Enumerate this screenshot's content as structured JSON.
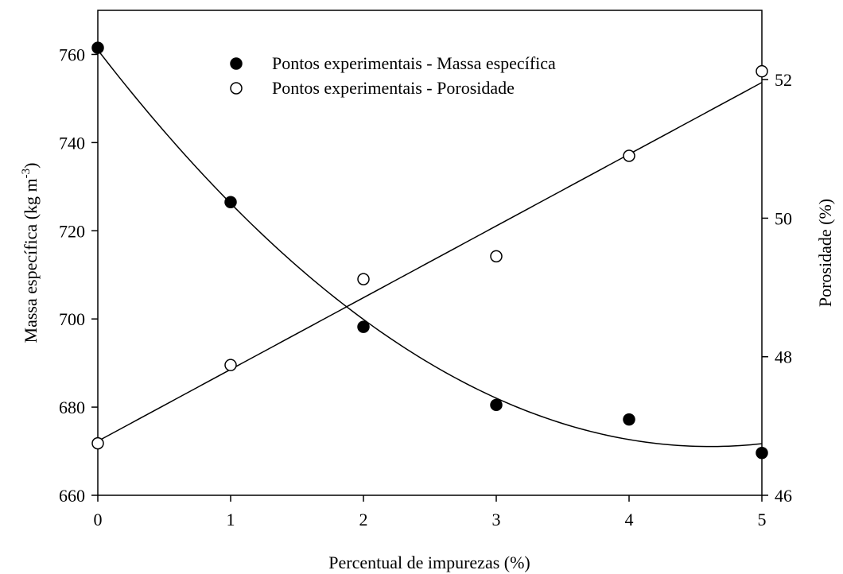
{
  "chart_data": {
    "type": "scatter",
    "x": [
      0,
      1,
      2,
      3,
      4,
      5
    ],
    "xlabel": "Percentual de impurezas (%)",
    "ylabel_left": "Massa específica (kg m",
    "ylabel_left_sup": "-3",
    "ylabel_left_close": ")",
    "ylabel_right": "Porosidade (%)",
    "xlim": [
      0,
      5
    ],
    "ylim_left": [
      660,
      770
    ],
    "ylim_right": [
      46,
      53
    ],
    "xticks": [
      "0",
      "1",
      "2",
      "3",
      "4",
      "5"
    ],
    "yticks_left": [
      "660",
      "680",
      "700",
      "720",
      "740",
      "760"
    ],
    "yticks_right": [
      "46",
      "48",
      "50",
      "52"
    ],
    "grid": false,
    "legend_placement": "top-center",
    "series": [
      {
        "name": "Pontos experimentais - Massa específica",
        "axis": "left",
        "marker": "filled-circle",
        "values": [
          761.5,
          726.5,
          698.2,
          680.5,
          677.2,
          669.6
        ],
        "fit_curve": "quadratic"
      },
      {
        "name": "Pontos experimentais - Porosidade",
        "axis": "right",
        "marker": "open-circle",
        "values": [
          46.75,
          47.88,
          49.12,
          49.45,
          50.9,
          52.12
        ],
        "fit_curve": "linear"
      }
    ]
  }
}
